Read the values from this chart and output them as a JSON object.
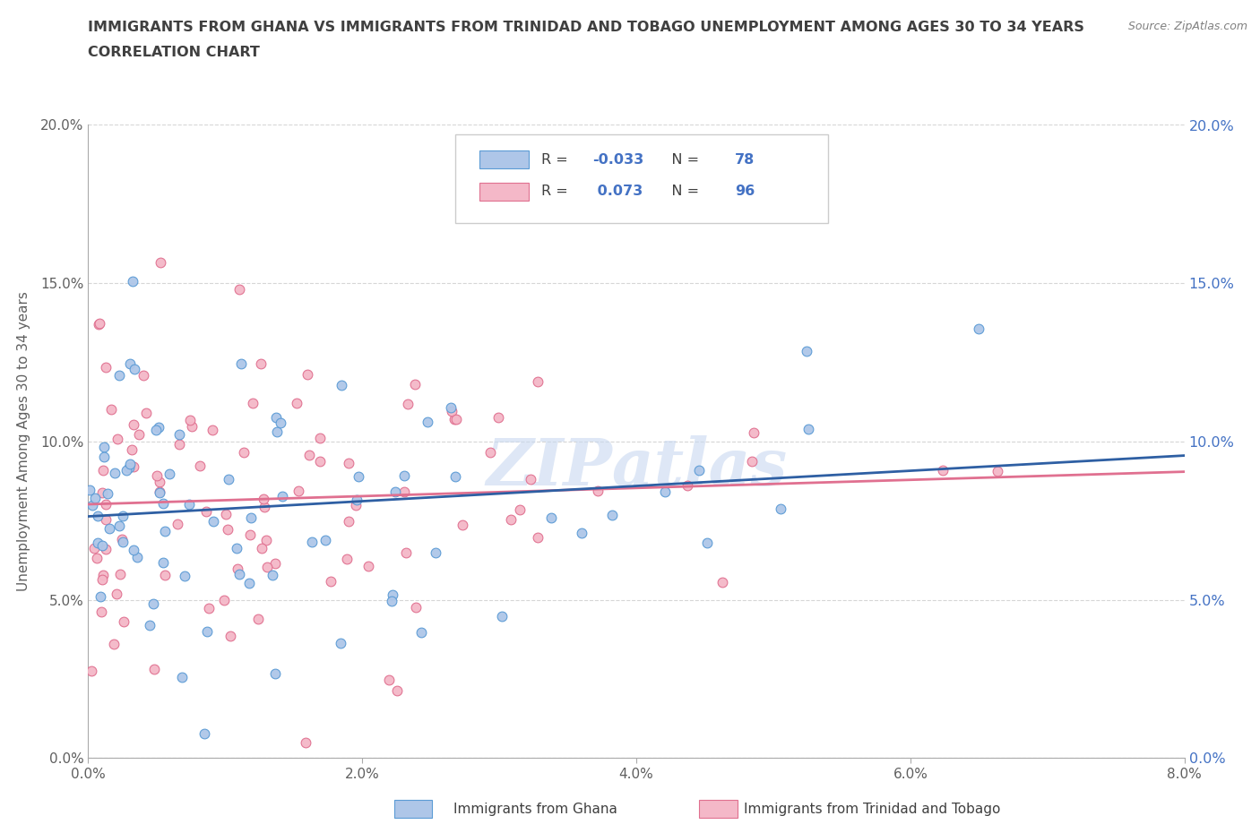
{
  "title_line1": "IMMIGRANTS FROM GHANA VS IMMIGRANTS FROM TRINIDAD AND TOBAGO UNEMPLOYMENT AMONG AGES 30 TO 34 YEARS",
  "title_line2": "CORRELATION CHART",
  "source": "Source: ZipAtlas.com",
  "ylabel": "Unemployment Among Ages 30 to 34 years",
  "xlim": [
    0.0,
    0.08
  ],
  "ylim": [
    0.0,
    0.2
  ],
  "xticks": [
    0.0,
    0.02,
    0.04,
    0.06,
    0.08
  ],
  "yticks": [
    0.0,
    0.05,
    0.1,
    0.15,
    0.2
  ],
  "xticklabels": [
    "0.0%",
    "2.0%",
    "4.0%",
    "6.0%",
    "8.0%"
  ],
  "yticklabels": [
    "0.0%",
    "5.0%",
    "10.0%",
    "15.0%",
    "20.0%"
  ],
  "ghana_color": "#aec6e8",
  "ghana_edge": "#5b9bd5",
  "tt_color": "#f4b8c8",
  "tt_edge": "#e07090",
  "ghana_line_color": "#2e5fa3",
  "tt_line_color": "#e07090",
  "ghana_R": -0.033,
  "ghana_N": 78,
  "tt_R": 0.073,
  "tt_N": 96,
  "ghana_label": "Immigrants from Ghana",
  "tt_label": "Immigrants from Trinidad and Tobago",
  "right_axis_color": "#4472c4",
  "legend_R_color": "#4472c4",
  "title_color": "#404040",
  "source_color": "#808080",
  "tick_color": "#606060",
  "grid_color": "#cccccc"
}
